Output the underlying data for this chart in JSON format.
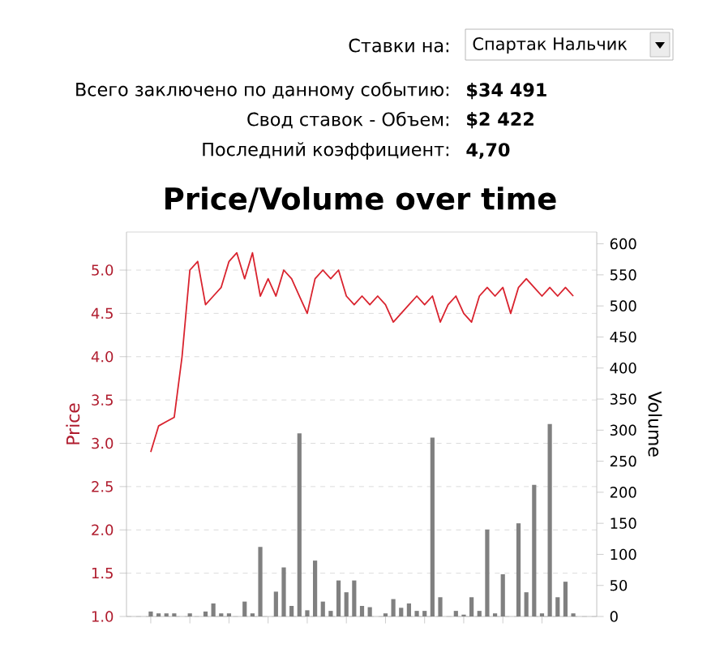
{
  "chart_data": {
    "type": "line",
    "title": "Price/Volume over time",
    "ylabel": "Price",
    "y2label": "Volume",
    "annotations": [
      "Ставки на:",
      "Спартак Нальчик",
      "Всего заключено по данному событию:",
      "**$34 491**",
      "Свод ставок - Объем:",
      "**$2 422**",
      "Последний коэффициент:",
      "**4,70**"
    ],
    "categories": [
      null,
      null,
      null,
      null,
      null,
      null,
      null,
      null,
      null,
      null,
      null,
      null,
      null,
      null,
      null,
      null,
      null,
      null,
      null,
      null,
      null,
      null,
      null,
      null,
      null,
      null,
      null,
      null,
      null,
      null,
      null,
      null,
      null,
      null,
      null,
      null,
      null,
      null,
      null,
      null,
      null,
      null,
      null,
      null,
      null,
      null,
      null,
      null,
      null,
      null,
      null,
      null,
      null,
      null,
      null
    ],
    "series": [
      {
        "type": "bar",
        "axis": "y2",
        "color": "#808080",
        "values": [
          8,
          5,
          5,
          5,
          0,
          5,
          0,
          8,
          21,
          5,
          5,
          0,
          24,
          5,
          112,
          0,
          40,
          79,
          17,
          295,
          10,
          90,
          24,
          9,
          58,
          39,
          58,
          17,
          15,
          0,
          5,
          28,
          14,
          21,
          9,
          9,
          288,
          31,
          0,
          9,
          3,
          31,
          9,
          140,
          5,
          68,
          0,
          150,
          39,
          212,
          5,
          310,
          31,
          56,
          5
        ]
      },
      {
        "color": "#d9232e",
        "values": [
          2.9,
          3.2,
          3.25,
          3.3,
          4.0,
          5.0,
          5.1,
          4.6,
          4.7,
          4.8,
          5.1,
          5.2,
          4.9,
          5.2,
          4.7,
          4.9,
          4.7,
          5.0,
          4.9,
          4.7,
          4.5,
          4.9,
          5.0,
          4.9,
          5.0,
          4.7,
          4.6,
          4.7,
          4.6,
          4.7,
          4.6,
          4.4,
          4.5,
          4.6,
          4.7,
          4.6,
          4.7,
          4.4,
          4.6,
          4.7,
          4.5,
          4.4,
          4.7,
          4.8,
          4.7,
          4.8,
          4.5,
          4.8,
          4.9,
          4.8,
          4.7,
          4.8,
          4.7,
          4.8,
          4.7
        ]
      }
    ],
    "ylim": [
      1.0,
      5.44
    ],
    "yticks": [
      {
        "value": 1.0,
        "label": "1.0"
      },
      {
        "value": 1.5,
        "label": "1.5"
      },
      {
        "value": 2.0,
        "label": "2.0"
      },
      {
        "value": 2.5,
        "label": "2.5"
      },
      {
        "value": 3.0,
        "label": "3.0"
      },
      {
        "value": 3.5,
        "label": "3.5"
      },
      {
        "value": 4.0,
        "label": "4.0"
      },
      {
        "value": 4.5,
        "label": "4.5"
      },
      {
        "value": 5.0,
        "label": "5.0"
      }
    ],
    "y2lim": [
      0,
      619
    ],
    "y2ticks": [
      0,
      50,
      100,
      150,
      200,
      250,
      300,
      350,
      400,
      450,
      500,
      550,
      600
    ],
    "grid": "y",
    "marker": "none",
    "line_style": "solid"
  }
}
